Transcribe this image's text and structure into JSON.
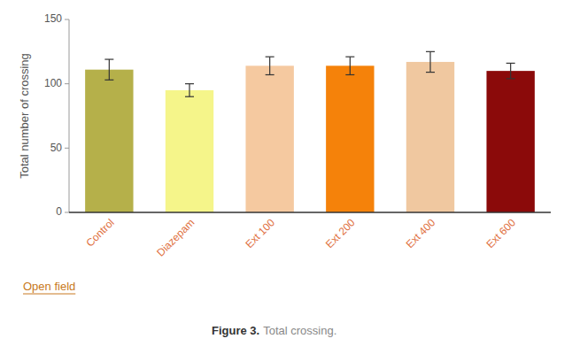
{
  "chart_data": {
    "type": "bar",
    "categories": [
      "Control",
      "Diazepam",
      "Ext 100",
      "Ext 200",
      "Ext 400",
      "Ext 600"
    ],
    "values": [
      111,
      95,
      114,
      114,
      117,
      110
    ],
    "errors": [
      8,
      5,
      7,
      7,
      8,
      6
    ],
    "colors": [
      "#b5b04a",
      "#f5f58a",
      "#f5c9a0",
      "#f5820a",
      "#f0c8a0",
      "#8b0a0a"
    ],
    "ylabel": "Total number of crossing",
    "ylim": [
      0,
      150
    ],
    "yticks": [
      0,
      50,
      100,
      150
    ],
    "grid": false,
    "annotations": [
      "Open field",
      "Figure 3.",
      "Total crossing."
    ]
  }
}
